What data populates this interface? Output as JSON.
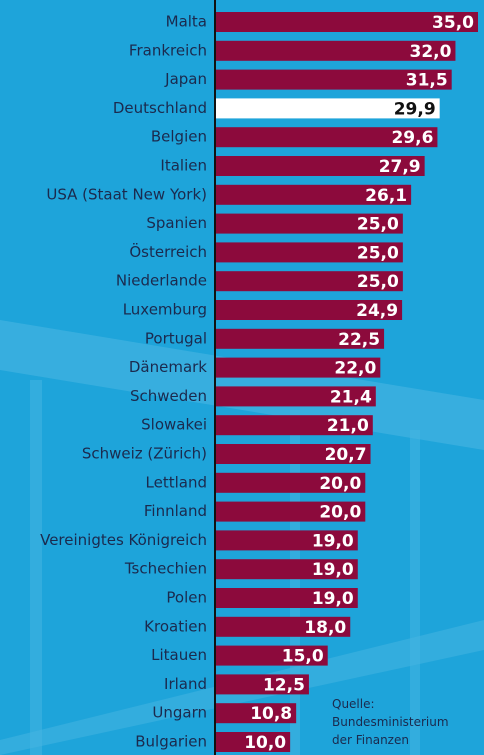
{
  "chart_data": {
    "type": "bar",
    "orientation": "horizontal",
    "categories": [
      "Malta",
      "Frankreich",
      "Japan",
      "Deutschland",
      "Belgien",
      "Italien",
      "USA (Staat New York)",
      "Spanien",
      "Österreich",
      "Niederlande",
      "Luxemburg",
      "Portugal",
      "Dänemark",
      "Schweden",
      "Slowakei",
      "Schweiz (Zürich)",
      "Lettland",
      "Finnland",
      "Vereinigtes Königreich",
      "Tschechien",
      "Polen",
      "Kroatien",
      "Litauen",
      "Irland",
      "Ungarn",
      "Bulgarien"
    ],
    "values": [
      35.0,
      32.0,
      31.5,
      29.9,
      29.6,
      27.9,
      26.1,
      25.0,
      25.0,
      25.0,
      24.9,
      22.5,
      22.0,
      21.4,
      21.0,
      20.7,
      20.0,
      20.0,
      19.0,
      19.0,
      19.0,
      18.0,
      15.0,
      12.5,
      10.8,
      10.0
    ],
    "value_labels": [
      "35,0",
      "32,0",
      "31,5",
      "29,9",
      "29,6",
      "27,9",
      "26,1",
      "25,0",
      "25,0",
      "25,0",
      "24,9",
      "22,5",
      "22,0",
      "21,4",
      "21,0",
      "20,7",
      "20,0",
      "20,0",
      "19,0",
      "19,0",
      "19,0",
      "18,0",
      "15,0",
      "12,5",
      "10,8",
      "10,0"
    ],
    "colors": [
      "#8c0a3c",
      "#8c0a3c",
      "#8c0a3c",
      "#ffffff",
      "#8c0a3c",
      "#8c0a3c",
      "#8c0a3c",
      "#8c0a3c",
      "#8c0a3c",
      "#8c0a3c",
      "#8c0a3c",
      "#8c0a3c",
      "#8c0a3c",
      "#8c0a3c",
      "#8c0a3c",
      "#8c0a3c",
      "#8c0a3c",
      "#8c0a3c",
      "#8c0a3c",
      "#8c0a3c",
      "#8c0a3c",
      "#8c0a3c",
      "#8c0a3c",
      "#8c0a3c",
      "#8c0a3c",
      "#8c0a3c"
    ],
    "xlim": [
      0,
      35
    ],
    "source": [
      "Quelle:",
      "Bundesministerium",
      "der Finanzen"
    ]
  }
}
